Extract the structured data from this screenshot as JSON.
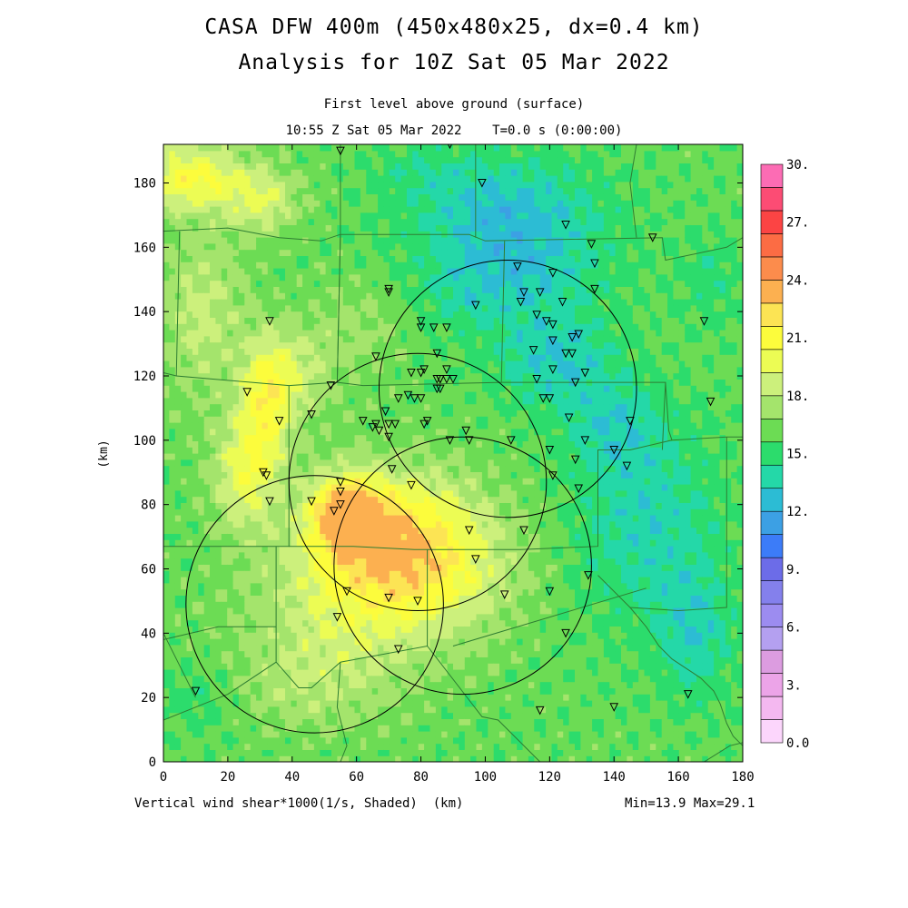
{
  "header": {
    "title_line1": "CASA DFW 400m (450x480x25, dx=0.4 km)",
    "title_line2": "Analysis for 10Z Sat 05 Mar 2022",
    "level": "First level above ground (surface)",
    "valid_time": "10:55 Z Sat 05 Mar 2022    T=0.0 s (0:00:00)"
  },
  "footer": {
    "variable_label": "Vertical wind shear*1000(1/s, Shaded)  (km)",
    "minmax": "Min=13.9 Max=29.1"
  },
  "chart_data": {
    "type": "heatmap",
    "xlabel": "",
    "ylabel": "(km)",
    "xlim": [
      0,
      180
    ],
    "ylim": [
      0,
      192
    ],
    "x_ticks": [
      0,
      20,
      40,
      60,
      80,
      100,
      120,
      140,
      160,
      180
    ],
    "y_ticks": [
      0,
      20,
      40,
      60,
      80,
      100,
      120,
      140,
      160,
      180
    ],
    "colorbar": {
      "min": 0,
      "max": 30,
      "step": 1.5,
      "tick_labels": [
        "0.0",
        "3.",
        "6.",
        "9.",
        "12.",
        "15.",
        "18.",
        "21.",
        "24.",
        "27.",
        "30."
      ],
      "colors": [
        "#fcd6fc",
        "#f4b8f0",
        "#eca4e8",
        "#dc9ce0",
        "#b4a0f0",
        "#9c8cf0",
        "#8480ec",
        "#6c6ce8",
        "#3c7cf8",
        "#3ca0e4",
        "#2cbcd4",
        "#24d8a8",
        "#2cdc6c",
        "#6cdc54",
        "#a4e46c",
        "#ccf07c",
        "#ecfc54",
        "#fcfc3c",
        "#fce454",
        "#fcb050",
        "#fc8c4c",
        "#fc6c44",
        "#fc4444",
        "#fc4c74",
        "#fc6cb4"
      ]
    },
    "field_max": {
      "x": 57,
      "y": 77,
      "value": 29.1
    },
    "field_min_value": 13.9,
    "radar_rings": [
      {
        "cx": 107,
        "cy": 116,
        "r": 40
      },
      {
        "cx": 79,
        "cy": 87,
        "r": 40
      },
      {
        "cx": 93,
        "cy": 61,
        "r": 40
      },
      {
        "cx": 47,
        "cy": 49,
        "r": 40
      }
    ],
    "stations": [
      [
        55,
        190
      ],
      [
        89,
        192
      ],
      [
        99,
        180
      ],
      [
        125,
        167
      ],
      [
        133,
        161
      ],
      [
        152,
        163
      ],
      [
        110,
        154
      ],
      [
        121,
        152
      ],
      [
        134,
        155
      ],
      [
        70,
        147
      ],
      [
        70,
        146
      ],
      [
        112,
        146
      ],
      [
        117,
        146
      ],
      [
        134,
        147
      ],
      [
        97,
        142
      ],
      [
        111,
        143
      ],
      [
        124,
        143
      ],
      [
        33,
        137
      ],
      [
        80,
        137
      ],
      [
        80,
        135
      ],
      [
        84,
        135
      ],
      [
        88,
        135
      ],
      [
        116,
        139
      ],
      [
        119,
        137
      ],
      [
        121,
        136
      ],
      [
        127,
        132
      ],
      [
        129,
        133
      ],
      [
        168,
        137
      ],
      [
        121,
        131
      ],
      [
        125,
        127
      ],
      [
        127,
        127
      ],
      [
        66,
        126
      ],
      [
        85,
        127
      ],
      [
        115,
        128
      ],
      [
        77,
        121
      ],
      [
        80,
        121
      ],
      [
        81,
        122
      ],
      [
        88,
        122
      ],
      [
        85,
        119
      ],
      [
        86,
        119
      ],
      [
        86,
        119
      ],
      [
        88,
        119
      ],
      [
        90,
        119
      ],
      [
        116,
        119
      ],
      [
        121,
        122
      ],
      [
        128,
        118
      ],
      [
        131,
        121
      ],
      [
        52,
        117
      ],
      [
        86,
        116
      ],
      [
        26,
        115
      ],
      [
        73,
        113
      ],
      [
        76,
        114
      ],
      [
        78,
        113
      ],
      [
        80,
        113
      ],
      [
        85,
        116
      ],
      [
        118,
        113
      ],
      [
        120,
        113
      ],
      [
        170,
        112
      ],
      [
        46,
        108
      ],
      [
        69,
        109
      ],
      [
        126,
        107
      ],
      [
        36,
        106
      ],
      [
        62,
        106
      ],
      [
        65,
        104
      ],
      [
        66,
        105
      ],
      [
        70,
        105
      ],
      [
        72,
        105
      ],
      [
        81,
        105
      ],
      [
        82,
        106
      ],
      [
        67,
        103
      ],
      [
        94,
        103
      ],
      [
        70,
        101
      ],
      [
        89,
        100
      ],
      [
        95,
        100
      ],
      [
        108,
        100
      ],
      [
        131,
        100
      ],
      [
        120,
        97
      ],
      [
        140,
        97
      ],
      [
        145,
        106
      ],
      [
        128,
        94
      ],
      [
        144,
        92
      ],
      [
        31,
        90
      ],
      [
        32,
        89
      ],
      [
        71,
        91
      ],
      [
        77,
        86
      ],
      [
        121,
        89
      ],
      [
        55,
        87
      ],
      [
        55,
        84
      ],
      [
        129,
        85
      ],
      [
        33,
        81
      ],
      [
        46,
        81
      ],
      [
        55,
        80
      ],
      [
        53,
        78
      ],
      [
        95,
        72
      ],
      [
        112,
        72
      ],
      [
        97,
        63
      ],
      [
        132,
        58
      ],
      [
        106,
        52
      ],
      [
        120,
        53
      ],
      [
        57,
        53
      ],
      [
        79,
        50
      ],
      [
        70,
        51
      ],
      [
        54,
        45
      ],
      [
        125,
        40
      ],
      [
        73,
        35
      ],
      [
        10,
        22
      ],
      [
        117,
        16
      ],
      [
        140,
        17
      ],
      [
        163,
        21
      ]
    ],
    "boundaries": [
      [
        [
          0,
          165
        ],
        [
          20,
          166
        ],
        [
          36,
          163
        ],
        [
          49,
          162
        ],
        [
          55,
          164
        ],
        [
          55,
          192
        ]
      ],
      [
        [
          5,
          165
        ],
        [
          4,
          120
        ],
        [
          39,
          117
        ],
        [
          54,
          118
        ],
        [
          55,
          164
        ]
      ],
      [
        [
          55,
          164
        ],
        [
          54,
          118
        ]
      ],
      [
        [
          55,
          164
        ],
        [
          95,
          164
        ],
        [
          100,
          162
        ],
        [
          155,
          163
        ],
        [
          156,
          156
        ],
        [
          175,
          160
        ],
        [
          180,
          163
        ]
      ],
      [
        [
          97,
          192
        ],
        [
          97,
          163
        ]
      ],
      [
        [
          147,
          192
        ],
        [
          145,
          180
        ],
        [
          147,
          163
        ]
      ],
      [
        [
          106,
          162
        ],
        [
          105,
          118
        ],
        [
          62,
          117
        ],
        [
          54,
          118
        ]
      ],
      [
        [
          4,
          120
        ],
        [
          0,
          121
        ]
      ],
      [
        [
          39,
          117
        ],
        [
          39,
          67
        ],
        [
          0,
          67
        ]
      ],
      [
        [
          39,
          67
        ],
        [
          59,
          67
        ],
        [
          78,
          66
        ],
        [
          111,
          66
        ],
        [
          135,
          67
        ],
        [
          135,
          97
        ],
        [
          145,
          97
        ],
        [
          158,
          100
        ],
        [
          175,
          101
        ],
        [
          180,
          101
        ]
      ],
      [
        [
          105,
          118
        ],
        [
          156,
          118
        ],
        [
          155,
          97
        ]
      ],
      [
        [
          156,
          118
        ],
        [
          157,
          103
        ],
        [
          158,
          100
        ]
      ],
      [
        [
          175,
          101
        ],
        [
          175,
          48
        ],
        [
          160,
          47
        ],
        [
          145,
          48
        ],
        [
          135,
          58
        ]
      ],
      [
        [
          35,
          67
        ],
        [
          35,
          42
        ],
        [
          17,
          42
        ],
        [
          0,
          38
        ]
      ],
      [
        [
          35,
          42
        ],
        [
          35,
          31
        ],
        [
          20,
          21
        ],
        [
          0,
          13
        ]
      ],
      [
        [
          35,
          31
        ],
        [
          42,
          23
        ],
        [
          46,
          23
        ],
        [
          55,
          31
        ],
        [
          82,
          36
        ],
        [
          99,
          14
        ],
        [
          104,
          13
        ],
        [
          117,
          0
        ]
      ],
      [
        [
          82,
          36
        ],
        [
          82,
          66
        ]
      ],
      [
        [
          55,
          31
        ],
        [
          54,
          17
        ],
        [
          57,
          5
        ],
        [
          55,
          0
        ]
      ],
      [
        [
          90,
          36
        ],
        [
          150,
          54
        ]
      ],
      [
        [
          0,
          40
        ],
        [
          10,
          20
        ]
      ],
      [
        [
          145,
          48
        ],
        [
          150,
          42
        ],
        [
          154,
          36
        ],
        [
          158,
          32
        ],
        [
          161,
          30
        ],
        [
          164,
          28
        ],
        [
          167,
          26
        ],
        [
          169,
          24
        ],
        [
          171,
          22
        ],
        [
          173,
          18
        ],
        [
          175,
          12
        ],
        [
          177,
          8
        ],
        [
          180,
          5
        ]
      ],
      [
        [
          168,
          0
        ],
        [
          176,
          5
        ],
        [
          180,
          6
        ]
      ]
    ]
  }
}
